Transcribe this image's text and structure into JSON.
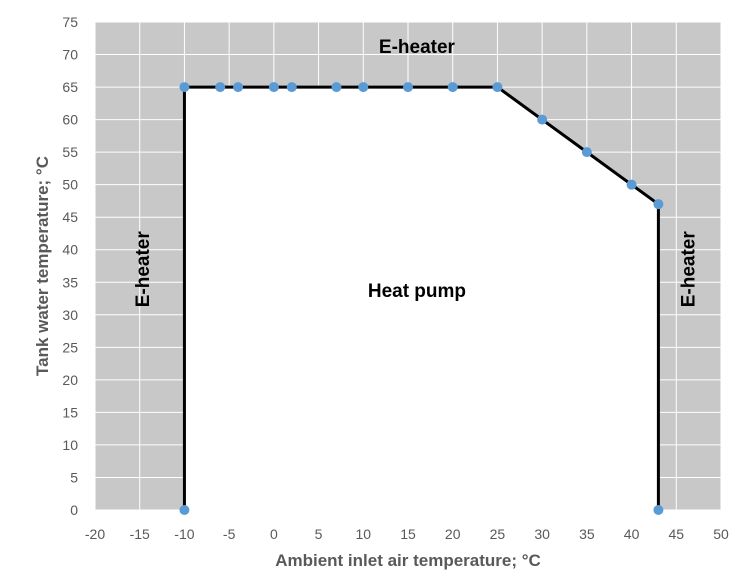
{
  "chart_data": {
    "type": "line",
    "title": "",
    "xlabel": "Ambient inlet air temperature; °C",
    "ylabel": "Tank water temperature; °C",
    "xlim": [
      -20,
      50
    ],
    "ylim": [
      0,
      75
    ],
    "xticks": [
      -20,
      -15,
      -10,
      -5,
      0,
      5,
      10,
      15,
      20,
      25,
      30,
      35,
      40,
      45,
      50
    ],
    "yticks": [
      0,
      5,
      10,
      15,
      20,
      25,
      30,
      35,
      40,
      45,
      50,
      55,
      60,
      65,
      70,
      75
    ],
    "grid": true,
    "legend": "none",
    "series": [
      {
        "points": [
          [
            -10,
            0
          ],
          [
            -10,
            65
          ],
          [
            -6,
            65
          ],
          [
            -4,
            65
          ],
          [
            0,
            65
          ],
          [
            2,
            65
          ],
          [
            7,
            65
          ],
          [
            10,
            65
          ],
          [
            15,
            65
          ],
          [
            20,
            65
          ],
          [
            25,
            65
          ],
          [
            30,
            60
          ],
          [
            35,
            55
          ],
          [
            40,
            50
          ],
          [
            43,
            47
          ],
          [
            43,
            0
          ]
        ]
      }
    ],
    "annotations": [
      {
        "text": "E-heater",
        "x": 16,
        "y": 71,
        "rotation": 0
      },
      {
        "text": "E-heater",
        "x": -14.5,
        "y": 37,
        "rotation": -90
      },
      {
        "text": "E-heater",
        "x": 46.5,
        "y": 37,
        "rotation": -90
      },
      {
        "text": "Heat pump",
        "x": 16,
        "y": 33.5,
        "rotation": 0
      }
    ],
    "colors": {
      "outside_region": "#c8c8c8",
      "inside_region": "#ffffff",
      "grid": "#ffffff",
      "boundary_line": "#000000",
      "marker": "#5b9bd5"
    }
  }
}
